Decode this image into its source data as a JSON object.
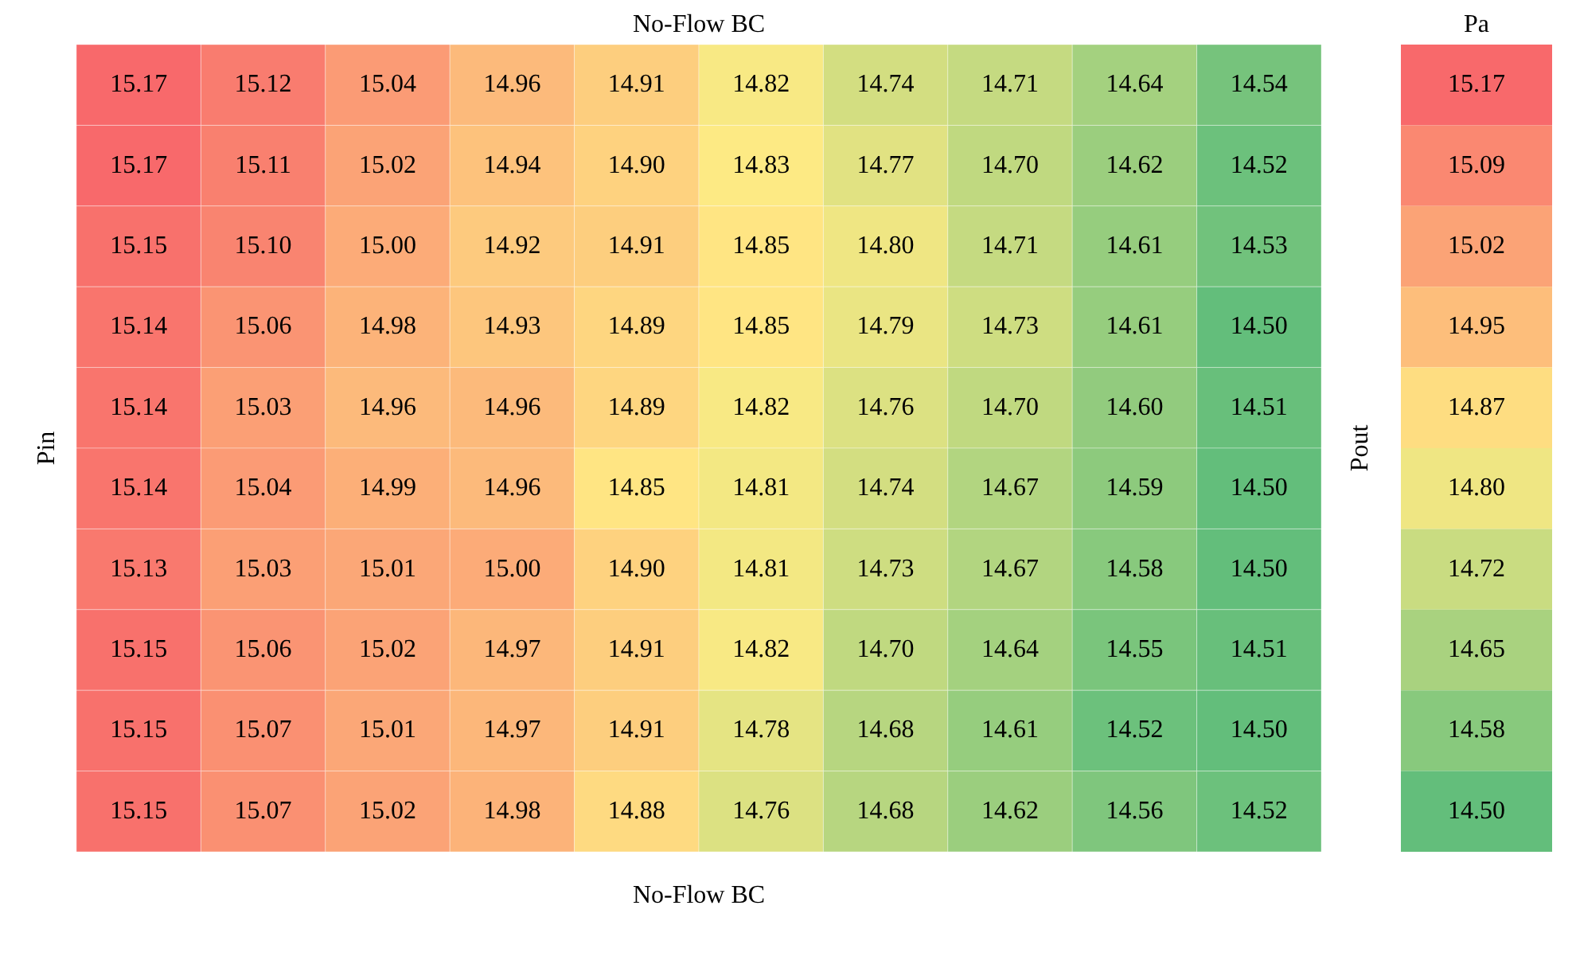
{
  "chart_data": {
    "type": "heatmap",
    "title": "No-Flow BC",
    "xlabel": "No-Flow BC",
    "ylabel": "Pin",
    "y2label": "Pout",
    "clabel": "Pa",
    "categories": [
      null,
      null,
      null,
      null,
      null,
      null,
      null,
      null,
      null,
      null
    ],
    "y_categories": [
      null,
      null,
      null,
      null,
      null,
      null,
      null,
      null,
      null,
      null
    ],
    "cells": [
      [
        15.17,
        15.12,
        15.04,
        14.96,
        14.91,
        14.82,
        14.74,
        14.71,
        14.64,
        14.54
      ],
      [
        15.17,
        15.11,
        15.02,
        14.94,
        14.9,
        14.83,
        14.77,
        14.7,
        14.62,
        14.52
      ],
      [
        15.15,
        15.1,
        15.0,
        14.92,
        14.91,
        14.85,
        14.8,
        14.71,
        14.61,
        14.53
      ],
      [
        15.14,
        15.06,
        14.98,
        14.93,
        14.89,
        14.85,
        14.79,
        14.73,
        14.61,
        14.5
      ],
      [
        15.14,
        15.03,
        14.96,
        14.96,
        14.89,
        14.82,
        14.76,
        14.7,
        14.6,
        14.51
      ],
      [
        15.14,
        15.04,
        14.99,
        14.96,
        14.85,
        14.81,
        14.74,
        14.67,
        14.59,
        14.5
      ],
      [
        15.13,
        15.03,
        15.01,
        15.0,
        14.9,
        14.81,
        14.73,
        14.67,
        14.58,
        14.5
      ],
      [
        15.15,
        15.06,
        15.02,
        14.97,
        14.91,
        14.82,
        14.7,
        14.64,
        14.55,
        14.51
      ],
      [
        15.15,
        15.07,
        15.01,
        14.97,
        14.91,
        14.78,
        14.68,
        14.61,
        14.52,
        14.5
      ],
      [
        15.15,
        15.07,
        15.02,
        14.98,
        14.88,
        14.76,
        14.68,
        14.62,
        14.56,
        14.52
      ]
    ],
    "data_labels": true,
    "cell_labels": [
      [
        "15.17",
        "15.12",
        "15.04",
        "14.96",
        "14.91",
        "14.82",
        "14.74",
        "14.71",
        "14.64",
        "14.54"
      ],
      [
        "15.17",
        "15.11",
        "15.02",
        "14.94",
        "14.90",
        "14.83",
        "14.77",
        "14.70",
        "14.62",
        "14.52"
      ],
      [
        "15.15",
        "15.10",
        "15.00",
        "14.92",
        "14.91",
        "14.85",
        "14.80",
        "14.71",
        "14.61",
        "14.53"
      ],
      [
        "15.14",
        "15.06",
        "14.98",
        "14.93",
        "14.89",
        "14.85",
        "14.79",
        "14.73",
        "14.61",
        "14.50"
      ],
      [
        "15.14",
        "15.03",
        "14.96",
        "14.96",
        "14.89",
        "14.82",
        "14.76",
        "14.70",
        "14.60",
        "14.51"
      ],
      [
        "15.14",
        "15.04",
        "14.99",
        "14.96",
        "14.85",
        "14.81",
        "14.74",
        "14.67",
        "14.59",
        "14.50"
      ],
      [
        "15.13",
        "15.03",
        "15.01",
        "15.00",
        "14.90",
        "14.81",
        "14.73",
        "14.67",
        "14.58",
        "14.50"
      ],
      [
        "15.15",
        "15.06",
        "15.02",
        "14.97",
        "14.91",
        "14.82",
        "14.70",
        "14.64",
        "14.55",
        "14.51"
      ],
      [
        "15.15",
        "15.07",
        "15.01",
        "14.97",
        "14.91",
        "14.78",
        "14.68",
        "14.61",
        "14.52",
        "14.50"
      ],
      [
        "15.15",
        "15.07",
        "15.02",
        "14.98",
        "14.88",
        "14.76",
        "14.68",
        "14.62",
        "14.56",
        "14.52"
      ]
    ],
    "clim": [
      14.5,
      15.17
    ],
    "cticks": [
      15.17,
      15.09,
      15.02,
      14.95,
      14.87,
      {
        "value": 14.8,
        "label": "14.80"
      },
      14.72,
      14.65,
      14.58,
      {
        "value": 14.5,
        "label": "14.50"
      }
    ]
  }
}
